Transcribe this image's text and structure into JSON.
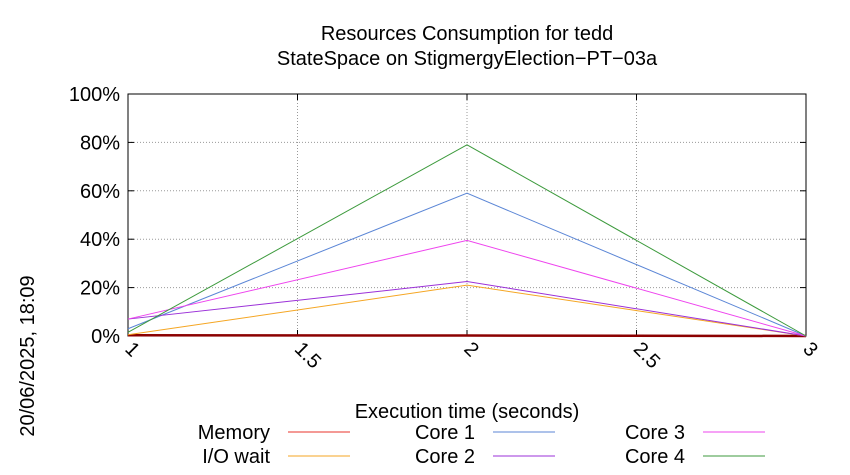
{
  "chart_data": {
    "type": "line",
    "title": [
      "Resources Consumption for tedd",
      "StateSpace on StigmergyElection−PT−03a"
    ],
    "xlabel": "Execution time (seconds)",
    "ylabel": "",
    "side_label": "20/06/2025, 18:09",
    "xlim": [
      1,
      3
    ],
    "ylim": [
      0,
      100
    ],
    "x_ticks": [
      1,
      1.5,
      2,
      2.5,
      3
    ],
    "x_tick_labels": [
      "1",
      "1.5",
      "2",
      "2.5",
      "3"
    ],
    "y_ticks": [
      0,
      20,
      40,
      60,
      80,
      100
    ],
    "y_tick_labels": [
      "0%",
      "20%",
      "40%",
      "60%",
      "80%",
      "100%"
    ],
    "grid": true,
    "legend_placement": "bottom",
    "series": [
      {
        "name": "Memory",
        "color": "#e8332b",
        "x": [
          1,
          2,
          3
        ],
        "values": [
          0.3,
          0.2,
          0
        ]
      },
      {
        "name": "I/O wait",
        "color": "#f5a623",
        "x": [
          1,
          2,
          3
        ],
        "values": [
          0.5,
          21,
          0
        ]
      },
      {
        "name": "Core 1",
        "color": "#5b86d6",
        "x": [
          1,
          2,
          3
        ],
        "values": [
          3,
          59,
          0
        ]
      },
      {
        "name": "Core 2",
        "color": "#9b30d8",
        "x": [
          1,
          2,
          3
        ],
        "values": [
          7,
          22.5,
          0
        ]
      },
      {
        "name": "Core 3",
        "color": "#ee44ee",
        "x": [
          1,
          2,
          3
        ],
        "values": [
          7,
          39.5,
          0
        ]
      },
      {
        "name": "Core 4",
        "color": "#3c9a3c",
        "x": [
          1,
          2,
          3
        ],
        "values": [
          1.5,
          79,
          0
        ]
      }
    ]
  }
}
